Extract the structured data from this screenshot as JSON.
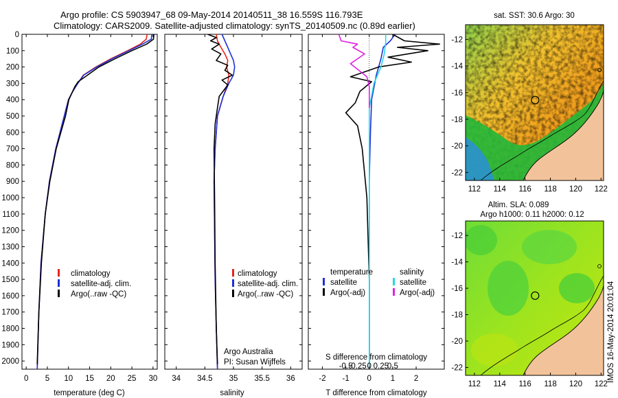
{
  "title_line1": "Argo profile: CS 5903947_68 09-May-2014 20140511_38 16.559S 116.793E",
  "title_line2": "Climatology: CARS2009. Satellite-adjusted climatology: synTS_20140509.nc (0.89d earlier)",
  "colors": {
    "climatology": "#e8231a",
    "satellite": "#1d2fd6",
    "argo": "#000000",
    "sat_salinity": "#22d8e8",
    "argo_salinity": "#e020e0",
    "land": "#f2c39a"
  },
  "chart_data": [
    {
      "type": "line",
      "name": "temperature",
      "xlabel": "temperature (deg C)",
      "ylabel": "",
      "xlim": [
        -1,
        31
      ],
      "ylim": [
        2050,
        0
      ],
      "xticks": [
        "0",
        "5",
        "10",
        "15",
        "20",
        "25",
        "30"
      ],
      "xtick_values": [
        0,
        5,
        10,
        15,
        20,
        25,
        30
      ],
      "yticks": [
        "0",
        "100",
        "200",
        "300",
        "400",
        "500",
        "600",
        "700",
        "800",
        "900",
        "1000",
        "1100",
        "1200",
        "1300",
        "1400",
        "1500",
        "1600",
        "1700",
        "1800",
        "1900",
        "2000"
      ],
      "ytick_values": [
        0,
        100,
        200,
        300,
        400,
        500,
        600,
        700,
        800,
        900,
        1000,
        1100,
        1200,
        1300,
        1400,
        1500,
        1600,
        1700,
        1800,
        1900,
        2000
      ],
      "legend": [
        "climatology",
        "satellite-adj. clim.",
        "Argo(..raw -QC)"
      ],
      "series": [
        {
          "name": "climatology",
          "x": [
            28.6,
            28.4,
            27.0,
            24.0,
            20.0,
            16.5,
            13.5,
            12.2,
            11.0,
            10.0,
            9.0,
            7.0,
            5.5,
            4.5,
            3.5,
            3.0,
            2.6
          ],
          "y": [
            0,
            30,
            60,
            100,
            150,
            200,
            250,
            300,
            350,
            400,
            500,
            700,
            900,
            1100,
            1400,
            1700,
            2050
          ]
        },
        {
          "name": "satellite-adj. clim.",
          "x": [
            29.7,
            29.6,
            27.5,
            24.3,
            20.3,
            16.7,
            13.6,
            12.2,
            11.0,
            10.0,
            9.0,
            7.0,
            5.5,
            4.5,
            3.5,
            3.0,
            2.6
          ],
          "y": [
            0,
            30,
            60,
            100,
            150,
            200,
            250,
            300,
            350,
            400,
            500,
            700,
            900,
            1100,
            1400,
            1700,
            2050
          ]
        },
        {
          "name": "Argo(..raw -QC)",
          "x": [
            30.2,
            30.1,
            28.5,
            25.0,
            21.0,
            17.2,
            14.5,
            12.3,
            11.5,
            10.1,
            9.3,
            7.1,
            5.6,
            4.5,
            3.6,
            3.0,
            2.6
          ],
          "y": [
            2,
            30,
            60,
            100,
            150,
            200,
            250,
            290,
            320,
            400,
            500,
            700,
            900,
            1100,
            1400,
            1700,
            2020
          ]
        }
      ]
    },
    {
      "type": "line",
      "name": "salinity",
      "xlabel": "salinity",
      "xlim": [
        33.8,
        36.2
      ],
      "ylim": [
        2050,
        0
      ],
      "xticks": [
        "34",
        "34.5",
        "35",
        "35.5",
        "36"
      ],
      "xtick_values": [
        34,
        34.5,
        35,
        35.5,
        36
      ],
      "legend": [
        "climatology",
        "satellite-adj. clim.",
        "Argo(..raw -QC)"
      ],
      "annotations": [
        "Argo Australia",
        "PI: Susan Wijffels"
      ],
      "series": [
        {
          "name": "climatology",
          "x": [
            34.7,
            34.72,
            34.78,
            34.85,
            34.9,
            34.88,
            34.92,
            34.9,
            34.82,
            34.72,
            34.68,
            34.66,
            34.67,
            34.68,
            34.7,
            34.72
          ],
          "y": [
            0,
            40,
            80,
            120,
            160,
            200,
            250,
            300,
            380,
            500,
            700,
            900,
            1200,
            1500,
            1800,
            2050
          ]
        },
        {
          "name": "satellite-adj. clim.",
          "x": [
            34.8,
            34.85,
            34.9,
            34.95,
            35.0,
            35.02,
            35.0,
            34.92,
            34.82,
            34.72,
            34.68,
            34.66,
            34.67,
            34.68,
            34.7,
            34.72
          ],
          "y": [
            0,
            40,
            80,
            120,
            160,
            200,
            250,
            300,
            380,
            500,
            700,
            900,
            1200,
            1500,
            1800,
            2050
          ]
        },
        {
          "name": "Argo(..raw -QC)",
          "x": [
            34.55,
            34.7,
            34.6,
            34.75,
            34.62,
            34.78,
            34.7,
            34.9,
            34.85,
            34.98,
            34.8,
            34.9,
            34.75,
            34.72,
            34.68,
            34.66,
            34.67,
            34.68,
            34.7,
            34.72
          ],
          "y": [
            0,
            20,
            40,
            60,
            90,
            120,
            160,
            190,
            220,
            250,
            280,
            310,
            380,
            450,
            550,
            700,
            1000,
            1400,
            1800,
            2020
          ]
        }
      ]
    },
    {
      "type": "line",
      "name": "differences",
      "xlabel": "T difference from climatology",
      "xlabel_top": "S difference from climatology",
      "xlim": [
        -2.6,
        3.2
      ],
      "ylim": [
        2050,
        0
      ],
      "xticks": [
        "-2",
        "-1",
        "0",
        "1",
        "2"
      ],
      "xtick_values": [
        -2,
        -1,
        0,
        1,
        2
      ],
      "xticks_top": [
        "-0.5",
        "-0.25",
        "0",
        "0.25",
        "0.5"
      ],
      "xtick_top_values": [
        -0.5,
        -0.25,
        0,
        0.25,
        0.5
      ],
      "legend_left_title": "temperature",
      "legend_right_title": "salinity",
      "legend": [
        "satellite",
        "Argo(-adj)",
        "satellite",
        "Argo(-adj)"
      ],
      "series": [
        {
          "name": "temperature satellite",
          "x": [
            1.1,
            0.9,
            0.6,
            0.5,
            0.3,
            0.1,
            0.05,
            0.0,
            0.0,
            0.0
          ],
          "y": [
            0,
            40,
            80,
            150,
            250,
            400,
            600,
            900,
            1400,
            2050
          ]
        },
        {
          "name": "temperature Argo(-adj)",
          "x": [
            1.0,
            1.5,
            3.0,
            1.2,
            2.5,
            0.8,
            1.8,
            0.4,
            -0.8,
            0.1,
            -0.4,
            -0.6,
            -1.0,
            -0.5,
            -0.3,
            -0.1,
            0.0,
            0.0
          ],
          "y": [
            0,
            40,
            60,
            80,
            100,
            140,
            170,
            200,
            260,
            290,
            350,
            420,
            480,
            560,
            700,
            1000,
            1500,
            2020
          ]
        },
        {
          "name": "salinity satellite",
          "x": [
            0.35,
            0.35,
            0.32,
            0.25,
            0.1,
            0.0,
            0.0,
            0.0
          ],
          "y": [
            0,
            50,
            120,
            200,
            300,
            450,
            900,
            2050
          ]
        },
        {
          "name": "salinity Argo(-adj)",
          "x": [
            -0.65,
            -0.6,
            -0.25,
            -0.35,
            -0.1,
            -0.4,
            -0.05,
            0.0,
            0.0
          ],
          "y": [
            0,
            40,
            60,
            80,
            120,
            180,
            260,
            320,
            450
          ]
        }
      ]
    }
  ],
  "maps": [
    {
      "type": "heatmap",
      "title": "sat. SST: 30.6 Argo: 30",
      "xticks": [
        "112",
        "114",
        "116",
        "118",
        "120",
        "122"
      ],
      "xtick_values": [
        112,
        114,
        116,
        118,
        120,
        122
      ],
      "yticks": [
        "-12",
        "-14",
        "-16",
        "-18",
        "-20",
        "-22"
      ],
      "ytick_values": [
        -12,
        -14,
        -16,
        -18,
        -20,
        -22
      ],
      "xlim": [
        111.3,
        122.2
      ],
      "ylim": [
        -22.6,
        -10.9
      ],
      "marker": {
        "lon": 116.793,
        "lat": -16.559
      }
    },
    {
      "type": "heatmap",
      "title_line1": "Altim. SLA: 0.089",
      "title_line2": "Argo h1000: 0.11 h2000: 0.12",
      "xticks": [
        "112",
        "114",
        "116",
        "118",
        "120",
        "122"
      ],
      "xtick_values": [
        112,
        114,
        116,
        118,
        120,
        122
      ],
      "yticks": [
        "-12",
        "-14",
        "-16",
        "-18",
        "-20",
        "-22"
      ],
      "ytick_values": [
        -12,
        -14,
        -16,
        -18,
        -20,
        -22
      ],
      "xlim": [
        111.3,
        122.2
      ],
      "ylim": [
        -22.6,
        -10.9
      ],
      "marker": {
        "lon": 116.793,
        "lat": -16.559
      }
    }
  ],
  "stamp": "IMOS 16-May-2014 20:01:04"
}
